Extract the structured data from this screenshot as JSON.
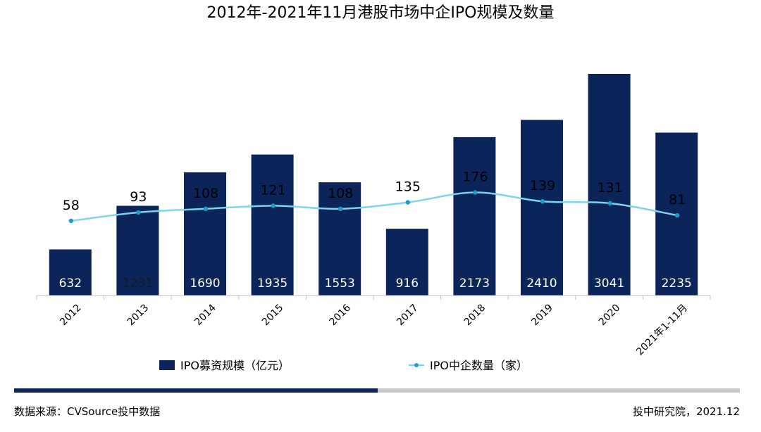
{
  "chart_data": {
    "type": "bar",
    "title": "2012年-2021年11月港股市场中企IPO规模及数量",
    "categories": [
      "2012",
      "2013",
      "2014",
      "2015",
      "2016",
      "2017",
      "2018",
      "2019",
      "2020",
      "2021年1-11月"
    ],
    "series": [
      {
        "name": "IPO募资规模（亿元）",
        "type": "bar",
        "values": [
          632,
          1231,
          1690,
          1935,
          1553,
          916,
          2173,
          2410,
          3041,
          2235
        ]
      },
      {
        "name": "IPO中企数量（家）",
        "type": "line",
        "values": [
          58,
          93,
          108,
          121,
          108,
          135,
          176,
          139,
          131,
          81
        ]
      }
    ],
    "legend": "bottom",
    "grid": false
  },
  "colors": {
    "bar": "#0b2459",
    "line": "#7fd3ea",
    "marker": "#1b9ec9",
    "footer_bar_dark": "#0b2459",
    "footer_bar_light": "#c9c9c9"
  },
  "footer": {
    "source": "数据来源：CVSource投中数据",
    "credit": "投中研究院，2021.12"
  }
}
